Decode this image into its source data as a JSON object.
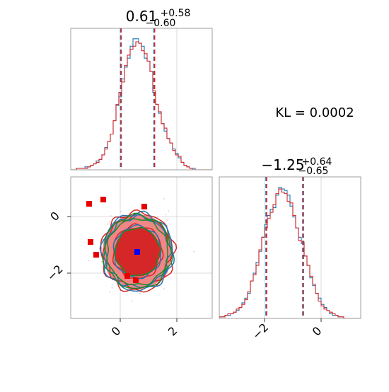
{
  "figure": {
    "kl_label": "KL = 0.0002"
  },
  "colors": {
    "series_a": "#1f77b4",
    "series_b": "#d62728",
    "contour_green": "#1a8a2a",
    "fill_light": "#f08080",
    "fill_dark": "#d62728",
    "marker_red": "#e60000",
    "marker_blue": "#0000ff",
    "grid": "#d0d0d0"
  },
  "chart_data": [
    {
      "type": "histogram",
      "panel": "top-left",
      "title": {
        "median": "0.61",
        "plus": "+0.58",
        "minus": "−0.60"
      },
      "xlim": [
        -1.75,
        3.25
      ],
      "grid": true,
      "quantile_lines": [
        0.01,
        1.19
      ],
      "bins": {
        "start": -1.75,
        "width": 0.1
      },
      "series": [
        {
          "color_key": "series_a",
          "counts": [
            0,
            0,
            1,
            1,
            1,
            2,
            2,
            3,
            4,
            6,
            7,
            10,
            15,
            19,
            24,
            33,
            43,
            49,
            61,
            69,
            75,
            83,
            88,
            88,
            85,
            83,
            75,
            73,
            66,
            52,
            44,
            38,
            31,
            26,
            21,
            18,
            14,
            11,
            8,
            5,
            3,
            2,
            1,
            1,
            0,
            0,
            0,
            0,
            0,
            0
          ]
        },
        {
          "color_key": "series_b",
          "counts": [
            0,
            0,
            1,
            1,
            1,
            1,
            2,
            3,
            4,
            5,
            7,
            10,
            14,
            19,
            24,
            33,
            44,
            52,
            59,
            70,
            77,
            81,
            83,
            86,
            85,
            80,
            78,
            73,
            66,
            53,
            44,
            39,
            31,
            28,
            21,
            18,
            13,
            10,
            9,
            5,
            3,
            2,
            1,
            0,
            0,
            0,
            0,
            0,
            0,
            0
          ]
        }
      ]
    },
    {
      "type": "histogram",
      "panel": "bottom-right",
      "title": {
        "median": "−1.25",
        "plus": "+0.64",
        "minus": "−0.65"
      },
      "xlim": [
        -3.6,
        1.4
      ],
      "xticks": [
        -2,
        0
      ],
      "grid": true,
      "quantile_lines": [
        -1.95,
        -0.65
      ],
      "bins": {
        "start": -3.6,
        "width": 0.1
      },
      "series": [
        {
          "color_key": "series_a",
          "counts": [
            1,
            1,
            2,
            2,
            3,
            4,
            5,
            7,
            10,
            13,
            16,
            24,
            29,
            36,
            43,
            52,
            60,
            66,
            70,
            71,
            79,
            84,
            83,
            82,
            79,
            72,
            65,
            58,
            52,
            48,
            40,
            34,
            26,
            21,
            16,
            13,
            9,
            7,
            5,
            3,
            2,
            2,
            1,
            1,
            0,
            0,
            0,
            0,
            0,
            0
          ]
        },
        {
          "color_key": "series_b",
          "counts": [
            1,
            1,
            2,
            3,
            3,
            4,
            6,
            7,
            9,
            12,
            17,
            24,
            28,
            34,
            44,
            52,
            58,
            64,
            68,
            73,
            80,
            83,
            81,
            80,
            75,
            74,
            66,
            58,
            50,
            49,
            40,
            34,
            27,
            22,
            16,
            11,
            8,
            6,
            5,
            4,
            3,
            2,
            1,
            1,
            0,
            0,
            0,
            0,
            0,
            0
          ]
        }
      ]
    },
    {
      "type": "scatter",
      "panel": "bottom-left",
      "xlim": [
        -1.75,
        3.25
      ],
      "ylim": [
        -3.6,
        1.4
      ],
      "xticks": [
        0,
        2
      ],
      "yticks": [
        0,
        -2
      ],
      "grid": true,
      "contours": {
        "center": [
          0.61,
          -1.25
        ],
        "sigma": [
          0.6,
          0.65
        ]
      },
      "red_markers": [
        [
          -1.1,
          0.45
        ],
        [
          -0.6,
          0.6
        ],
        [
          0.85,
          0.35
        ],
        [
          -1.05,
          -0.9
        ],
        [
          -0.85,
          -1.35
        ],
        [
          0.25,
          -2.1
        ],
        [
          0.55,
          -2.25
        ]
      ],
      "blue_marker": [
        0.6,
        -1.25
      ]
    }
  ]
}
